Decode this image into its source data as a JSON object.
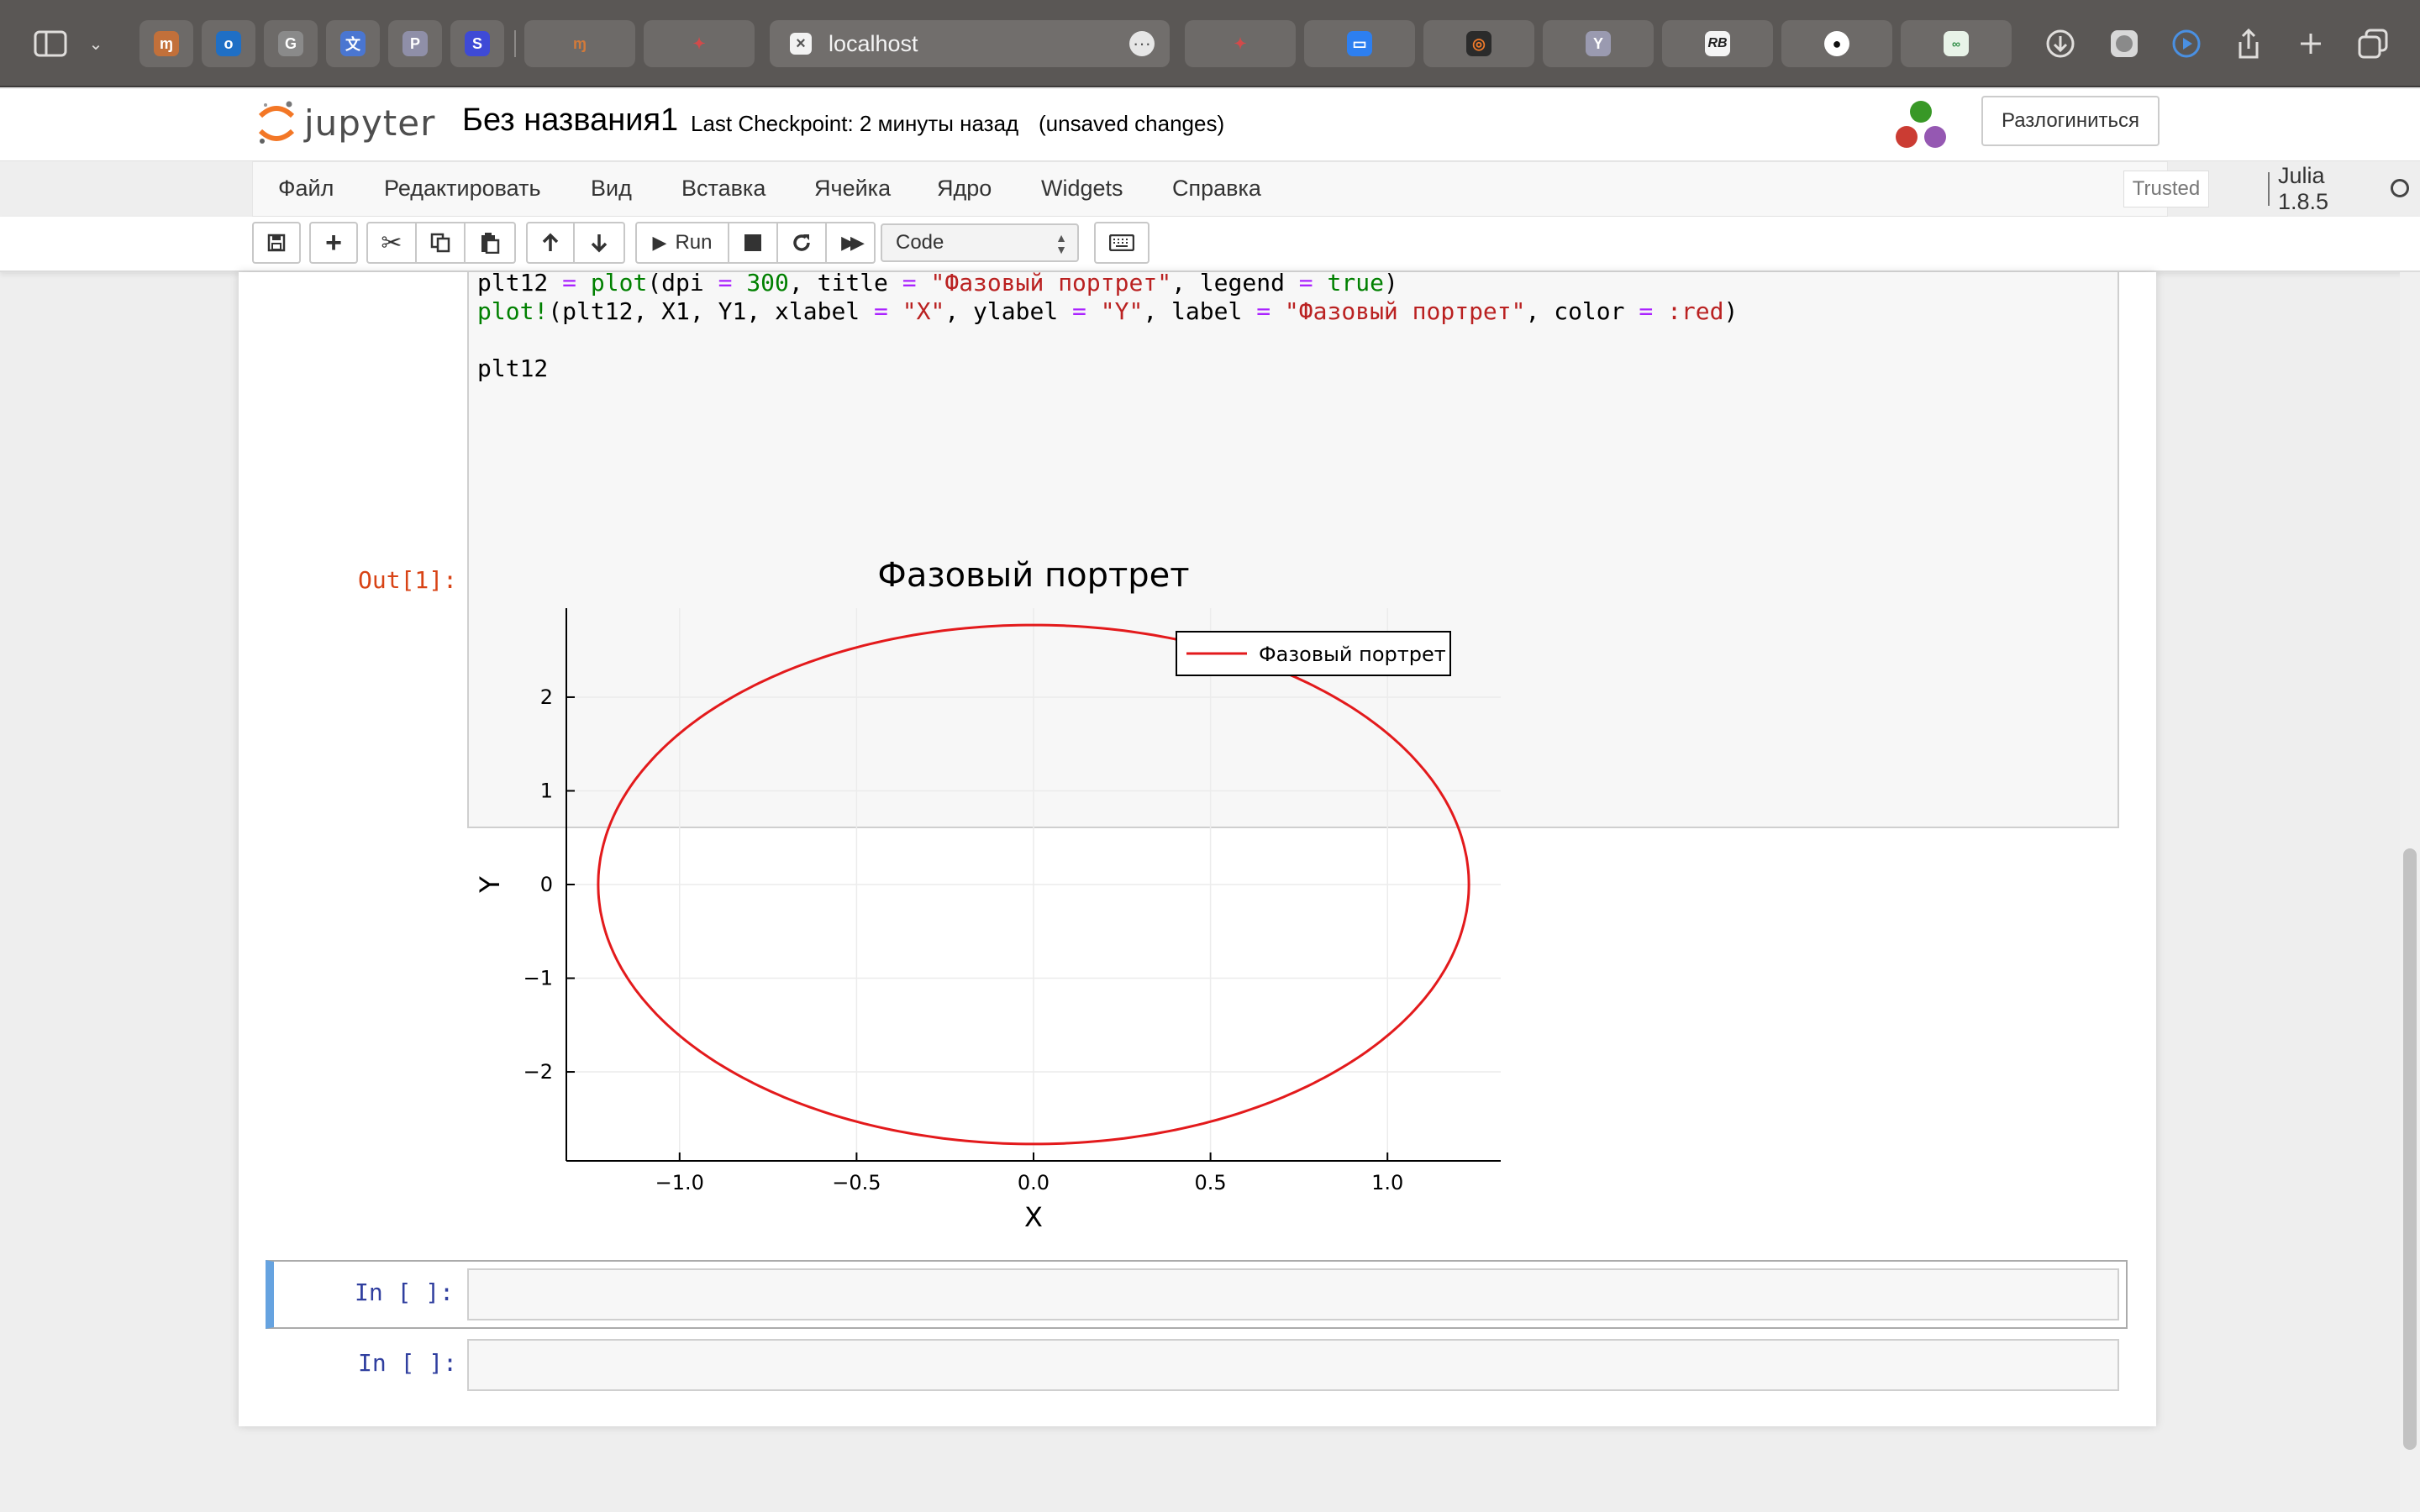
{
  "browser": {
    "url": "localhost",
    "tab_letters": {
      "g": "G",
      "p": "P",
      "s": "S",
      "y": "Y",
      "rb": "RB"
    }
  },
  "header": {
    "logo_text": "jupyter",
    "notebook_name": "Без названия1",
    "checkpoint": "Last Checkpoint: 2 минуты назад",
    "unsaved": "(unsaved changes)",
    "logout_label": "Разлогиниться"
  },
  "menu": {
    "items": [
      "Файл",
      "Редактировать",
      "Вид",
      "Вставка",
      "Ячейка",
      "Ядро",
      "Widgets",
      "Справка"
    ],
    "trusted": "Trusted",
    "kernel_name": "Julia 1.8.5"
  },
  "toolbar": {
    "run_label": "Run",
    "cell_type": "Code"
  },
  "cell": {
    "code_lines": [
      "plt12 = plot(dpi = 300, title = \"Фазовый портрет\", legend = true)",
      "plot!(plt12, X1, Y1, xlabel = \"X\", ylabel = \"Y\", label = \"Фазовый портрет\", color = :red)",
      "",
      "plt12"
    ],
    "out_prompt": "Out[1]:"
  },
  "empty_cells": [
    {
      "prompt": "In [ ]:"
    },
    {
      "prompt": "In [ ]:"
    }
  ],
  "chart_data": {
    "type": "line",
    "title": "Фазовый портрет",
    "xlabel": "X",
    "ylabel": "Y",
    "xlim": [
      -1.32,
      1.32
    ],
    "ylim": [
      -2.95,
      2.95
    ],
    "xticks": [
      -1.0,
      -0.5,
      0.0,
      0.5,
      1.0
    ],
    "xtick_labels": [
      "−1.0",
      "−0.5",
      "0.0",
      "0.5",
      "1.0"
    ],
    "yticks": [
      -2,
      -1,
      0,
      1,
      2
    ],
    "ytick_labels": [
      "−2",
      "−1",
      "0",
      "1",
      "2"
    ],
    "grid": true,
    "legend_position": "top-right",
    "series": [
      {
        "name": "Фазовый портрет",
        "color": "#e31a1c",
        "shape": "ellipse",
        "center": [
          0.0,
          0.0
        ],
        "x_semi_axis": 1.23,
        "y_semi_axis": 2.77
      }
    ]
  }
}
